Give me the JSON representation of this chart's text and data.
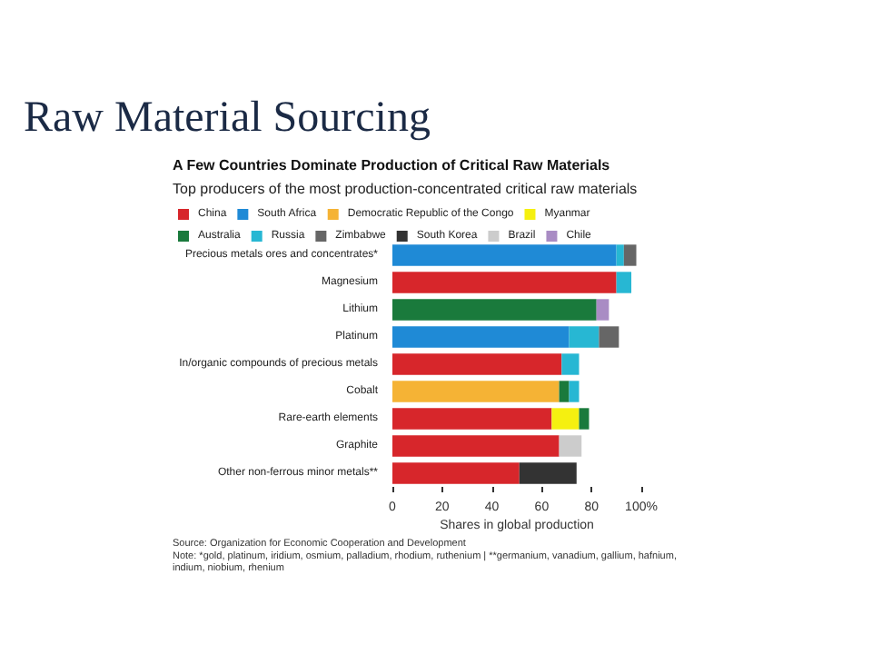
{
  "chart_data": {
    "type": "bar",
    "orientation": "horizontal",
    "stacked": true,
    "title": "Raw Material Sourcing",
    "subtitle": "A Few Countries Dominate Production of Critical Raw Materials",
    "annotations": [
      "Top producers of the most production-concentrated critical raw materials",
      "Source: Organization for Economic Cooperation and Development",
      "Note: *gold, platinum, iridium, osmium, palladium, rhodium, ruthenium | **germanium, vanadium, gallium, hafnium, indium, niobium, rhenium"
    ],
    "xlabel": "Shares in global production",
    "categories": [
      "Precious metals ores and concentrates*",
      "Magnesium",
      "Lithium",
      "Platinum",
      "In/organic compounds of precious metals",
      "Cobalt",
      "Rare-earth elements",
      "Graphite",
      "Other non-ferrous minor metals**"
    ],
    "series": [
      {
        "name": "China",
        "color": "#d7262b",
        "values": [
          null,
          90,
          null,
          null,
          68,
          null,
          64,
          67,
          51
        ]
      },
      {
        "name": "South Africa",
        "color": "#1f8ad6",
        "values": [
          90,
          null,
          null,
          71,
          null,
          null,
          null,
          null,
          null
        ]
      },
      {
        "name": "Democratic Republic of the Congo",
        "color": "#f5b335",
        "values": [
          null,
          null,
          null,
          null,
          null,
          67,
          null,
          null,
          null
        ]
      },
      {
        "name": "Myanmar",
        "color": "#f5f010",
        "values": [
          null,
          null,
          null,
          null,
          null,
          null,
          11,
          null,
          null
        ]
      },
      {
        "name": "Australia",
        "color": "#1a7a3c",
        "values": [
          null,
          null,
          82,
          null,
          null,
          4,
          4,
          null,
          null
        ]
      },
      {
        "name": "Russia",
        "color": "#27b7d3",
        "values": [
          3,
          6,
          null,
          12,
          7,
          4,
          null,
          null,
          null
        ]
      },
      {
        "name": "Zimbabwe",
        "color": "#666666",
        "values": [
          5,
          null,
          null,
          8,
          null,
          null,
          null,
          null,
          null
        ]
      },
      {
        "name": "South Korea",
        "color": "#333333",
        "values": [
          null,
          null,
          null,
          null,
          null,
          null,
          null,
          null,
          23
        ]
      },
      {
        "name": "Brazil",
        "color": "#cccccc",
        "values": [
          null,
          null,
          null,
          null,
          null,
          null,
          null,
          9,
          null
        ]
      },
      {
        "name": "Chile",
        "color": "#a98cc4",
        "values": [
          null,
          null,
          5,
          null,
          null,
          null,
          null,
          null,
          null
        ]
      }
    ],
    "xlim": [
      0,
      100
    ],
    "xticks": [
      0,
      20,
      40,
      60,
      80,
      {
        "value": 100,
        "label": "100%"
      }
    ],
    "legend": "top left"
  }
}
